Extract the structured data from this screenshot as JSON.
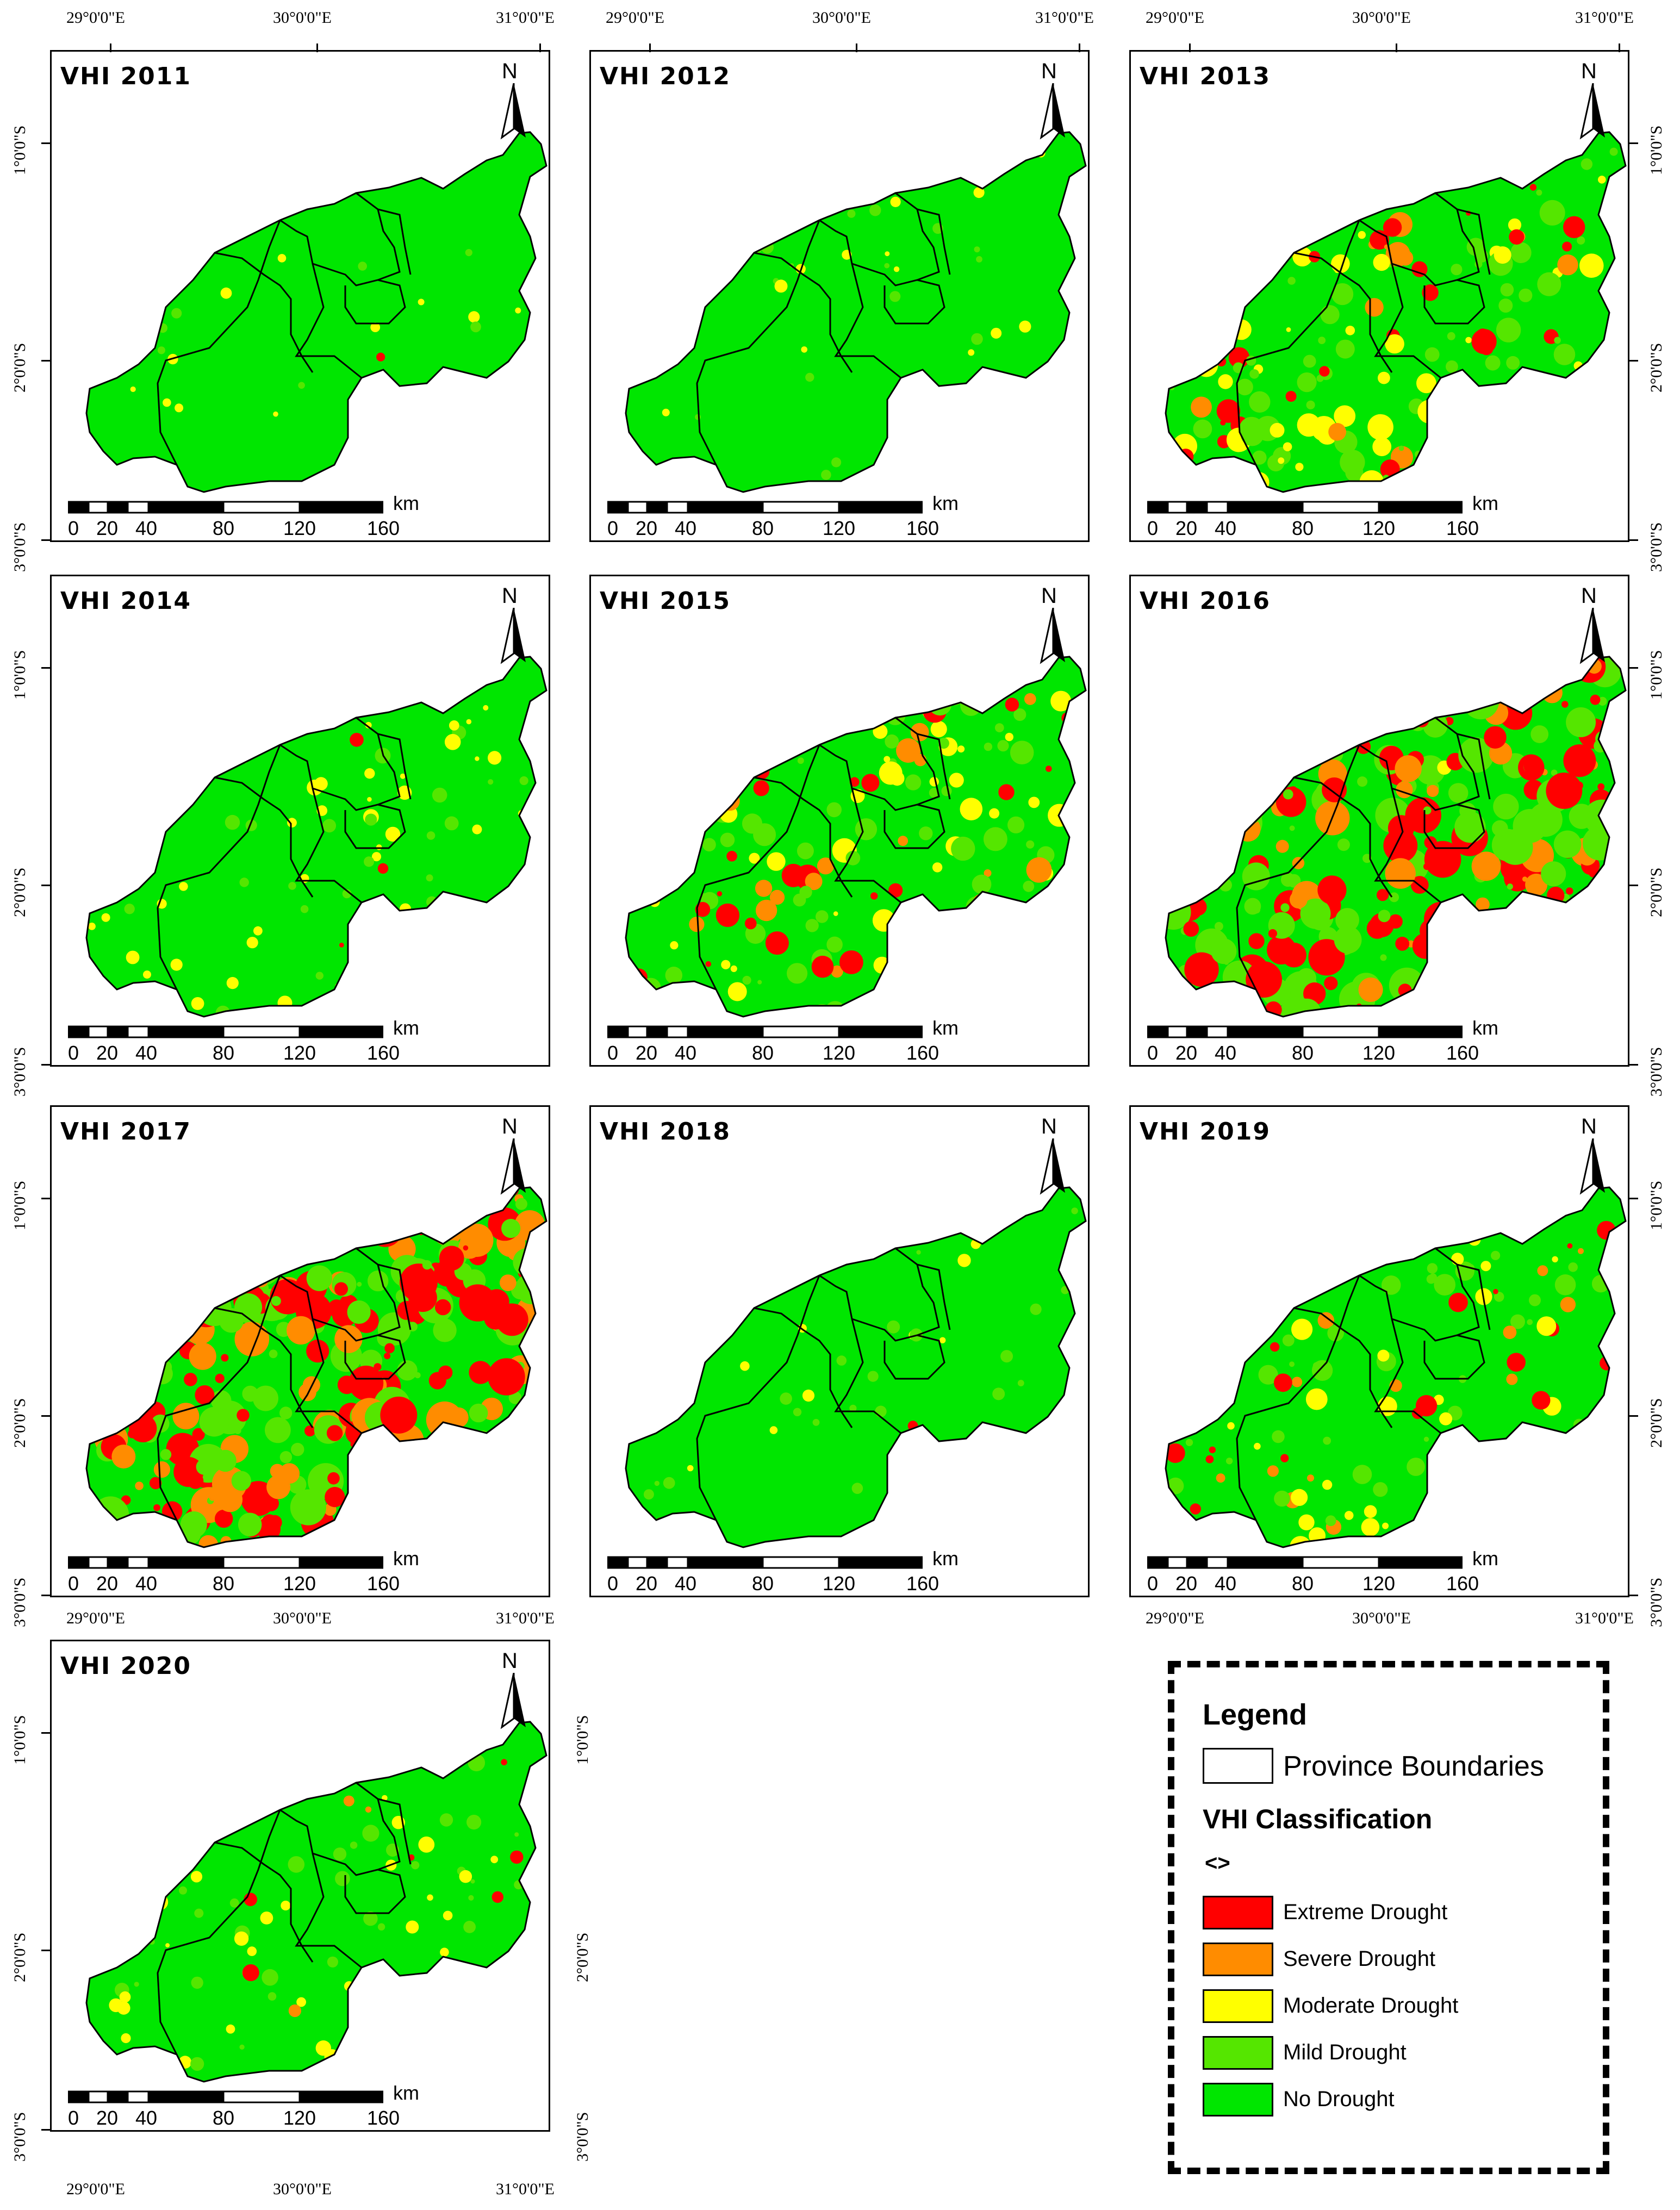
{
  "panels": [
    {
      "title": "VHI 2011",
      "drought": 0.02
    },
    {
      "title": "VHI 2012",
      "drought": 0.05
    },
    {
      "title": "VHI 2013",
      "drought": 0.35
    },
    {
      "title": "VHI 2014",
      "drought": 0.12
    },
    {
      "title": "VHI 2015",
      "drought": 0.35
    },
    {
      "title": "VHI 2016",
      "drought": 0.6
    },
    {
      "title": "VHI 2017",
      "drought": 0.65
    },
    {
      "title": "VHI 2018",
      "drought": 0.06
    },
    {
      "title": "VHI 2019",
      "drought": 0.25
    },
    {
      "title": "VHI 2020",
      "drought": 0.15
    }
  ],
  "north_label": "N",
  "scale": {
    "unit": "km",
    "labels": [
      "0",
      "20",
      "40",
      "80",
      "120",
      "160"
    ]
  },
  "coords": {
    "lon": [
      "29°0'0\"E",
      "30°0'0\"E",
      "31°0'0\"E"
    ],
    "lat": [
      "1°0'0\"S",
      "2°0'0\"S",
      "3°0'0\"S"
    ]
  },
  "legend": {
    "title": "Legend",
    "boundary_label": "Province Boundaries",
    "classification_title": "VHI Classification",
    "value_code": "<>",
    "classes": [
      {
        "label": "Extreme Drought",
        "color": "#ff0000"
      },
      {
        "label": "Severe Drought",
        "color": "#ff8c00"
      },
      {
        "label": "Moderate Drought",
        "color": "#ffff00"
      },
      {
        "label": "Mild Drought",
        "color": "#55e600"
      },
      {
        "label": "No Drought",
        "color": "#00e600"
      }
    ]
  },
  "colors": {
    "no_drought": "#00e600",
    "mild": "#55e600",
    "moderate": "#ffff00",
    "severe": "#ff8c00",
    "extreme": "#ff0000"
  }
}
